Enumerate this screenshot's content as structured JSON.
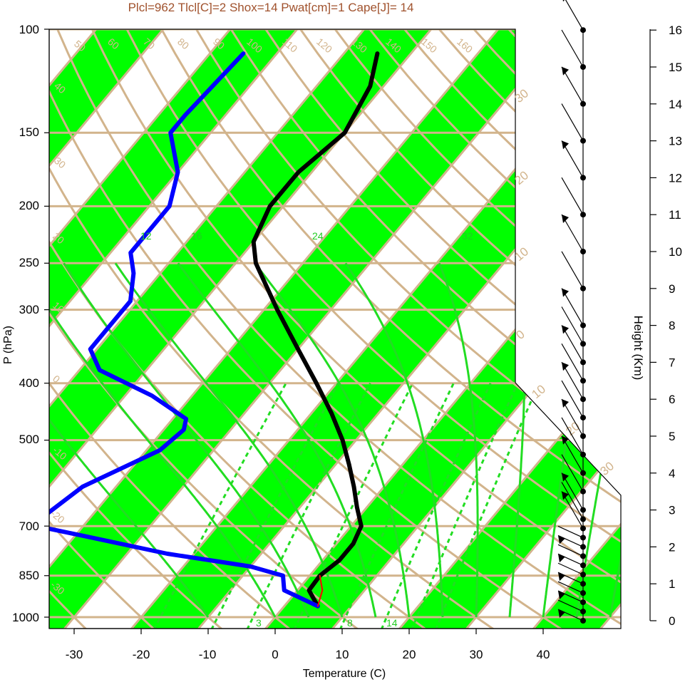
{
  "title": "Plcl=962 Tlcl[C]=2 Shox=14 Pwat[cm]=1 Cape[J]= 14",
  "colors": {
    "band_green": "#00ff00",
    "tan": "#d2b48c",
    "temperature": "#000000",
    "dewpoint": "#0000ff",
    "parcel": "#ff0000",
    "moist_adiabat": "#22dd22",
    "title": "#a0522d"
  },
  "chart_data": {
    "type": "skew-t",
    "title": "Plcl=962 Tlcl[C]=2 Shox=14 Pwat[cm]=1 Cape[J]= 14",
    "xlabel": "Temperature (C)",
    "ylabel": "P (hPa)",
    "y2label": "Height (Km)",
    "x_ticks": [
      "-30",
      "-20",
      "-10",
      "0",
      "10",
      "20",
      "30",
      "40"
    ],
    "y_ticks": [
      "100",
      "150",
      "200",
      "250",
      "300",
      "400",
      "500",
      "700",
      "850",
      "1000"
    ],
    "height_ticks": [
      "0",
      "1",
      "2",
      "3",
      "4",
      "5",
      "6",
      "7",
      "8",
      "9",
      "10",
      "11",
      "12",
      "13",
      "14",
      "15",
      "16"
    ],
    "isotherm_labels_top": [
      "50",
      "60",
      "70",
      "80",
      "90",
      "100",
      "110",
      "120",
      "130",
      "140",
      "150",
      "160"
    ],
    "isotherm_labels_left": [
      "40",
      "30",
      "20",
      "10",
      "0",
      "-10",
      "-20",
      "-30"
    ],
    "isotherm_labels_right": [
      "30",
      "20",
      "10",
      "0",
      "10",
      "20",
      "30"
    ],
    "mixing_ratio_labels": [
      "12",
      "16",
      "24",
      "32"
    ],
    "mixing_ratio_labels_bottom": [
      "3",
      "8",
      "14"
    ],
    "series": [
      {
        "name": "temperature",
        "points": [
          {
            "p": 958,
            "t": 5
          },
          {
            "p": 900,
            "t": 1.7
          },
          {
            "p": 850,
            "t": 1.5
          },
          {
            "p": 800,
            "t": 2.5
          },
          {
            "p": 750,
            "t": 2.5
          },
          {
            "p": 700,
            "t": 1.5
          },
          {
            "p": 650,
            "t": -1.5
          },
          {
            "p": 600,
            "t": -4.5
          },
          {
            "p": 550,
            "t": -8
          },
          {
            "p": 500,
            "t": -12
          },
          {
            "p": 450,
            "t": -17
          },
          {
            "p": 400,
            "t": -23
          },
          {
            "p": 350,
            "t": -30
          },
          {
            "p": 300,
            "t": -38
          },
          {
            "p": 250,
            "t": -47
          },
          {
            "p": 230,
            "t": -50
          },
          {
            "p": 200,
            "t": -52
          },
          {
            "p": 175,
            "t": -52
          },
          {
            "p": 150,
            "t": -50
          },
          {
            "p": 125,
            "t": -52
          },
          {
            "p": 110,
            "t": -55
          }
        ]
      },
      {
        "name": "dewpoint",
        "points": [
          {
            "p": 958,
            "t": 5
          },
          {
            "p": 900,
            "t": -2
          },
          {
            "p": 850,
            "t": -4
          },
          {
            "p": 820,
            "t": -10
          },
          {
            "p": 780,
            "t": -24
          },
          {
            "p": 730,
            "t": -38
          },
          {
            "p": 700,
            "t": -47
          },
          {
            "p": 670,
            "t": -47
          },
          {
            "p": 600,
            "t": -45
          },
          {
            "p": 520,
            "t": -38
          },
          {
            "p": 480,
            "t": -37
          },
          {
            "p": 460,
            "t": -38
          },
          {
            "p": 420,
            "t": -46
          },
          {
            "p": 380,
            "t": -57
          },
          {
            "p": 350,
            "t": -61
          },
          {
            "p": 320,
            "t": -61
          },
          {
            "p": 290,
            "t": -61
          },
          {
            "p": 260,
            "t": -64
          },
          {
            "p": 240,
            "t": -67
          },
          {
            "p": 200,
            "t": -67
          },
          {
            "p": 175,
            "t": -70
          },
          {
            "p": 150,
            "t": -76
          },
          {
            "p": 140,
            "t": -76
          },
          {
            "p": 110,
            "t": -75
          }
        ]
      },
      {
        "name": "parcel",
        "points": [
          {
            "p": 958,
            "t": 5
          },
          {
            "p": 900,
            "t": 3.7
          },
          {
            "p": 850,
            "t": 1.5
          }
        ]
      }
    ],
    "wind_levels_km": [
      0,
      0.25,
      0.5,
      0.75,
      1,
      1.25,
      1.5,
      1.75,
      2,
      2.25,
      2.5,
      2.75,
      3,
      3.5,
      4,
      4.5,
      5,
      5.5,
      6,
      6.5,
      7,
      7.5,
      8,
      9,
      10,
      11,
      12,
      13,
      14,
      15,
      16
    ]
  }
}
